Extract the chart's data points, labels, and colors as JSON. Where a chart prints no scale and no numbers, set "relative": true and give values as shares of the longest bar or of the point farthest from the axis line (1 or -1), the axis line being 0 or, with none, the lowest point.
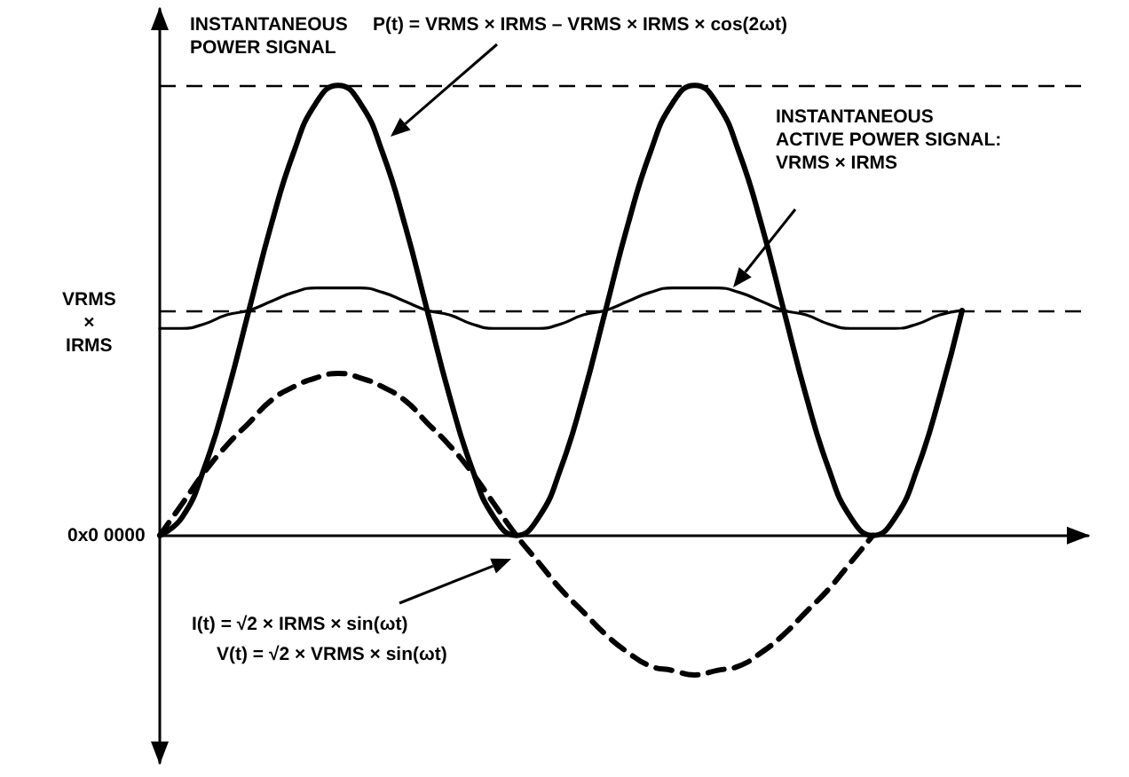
{
  "chart_data": {
    "type": "line",
    "relative": true,
    "categories": [
      null,
      null,
      null,
      null,
      null,
      null,
      null,
      null,
      null,
      null,
      null,
      null,
      null,
      null,
      null,
      null,
      null,
      null,
      null,
      null,
      null,
      null,
      null,
      null,
      null,
      null,
      null,
      null,
      null,
      null,
      null,
      null,
      null,
      null,
      null,
      null,
      null
    ],
    "series": [
      {
        "color": "#000000",
        "values": [
          0,
          0.04,
          0.15,
          0.31,
          0.5,
          0.69,
          0.85,
          0.96,
          1,
          0.96,
          0.85,
          0.69,
          0.5,
          0.31,
          0.15,
          0.04,
          0,
          0.04,
          0.15,
          0.31,
          0.5,
          0.69,
          0.85,
          0.96,
          1,
          0.96,
          0.85,
          0.69,
          0.5,
          0.31,
          0.15,
          0.04,
          0,
          0.04,
          0.15,
          0.31,
          0.5
        ]
      },
      {
        "color": "#000000",
        "values": [
          0.46,
          0.46,
          0.47,
          0.49,
          0.5,
          0.52,
          0.54,
          0.55,
          0.55,
          0.55,
          0.54,
          0.52,
          0.5,
          0.49,
          0.47,
          0.46,
          0.46,
          0.46,
          0.47,
          0.49,
          0.5,
          0.52,
          0.54,
          0.55,
          0.55,
          0.55,
          0.54,
          0.52,
          0.5,
          0.49,
          0.47,
          0.46,
          0.46,
          0.46,
          0.47,
          0.49,
          0.5
        ]
      },
      {
        "color": "#000000",
        "line_style": "dashed",
        "values": [
          0,
          0.07,
          0.14,
          0.2,
          0.25,
          0.3,
          0.33,
          0.35,
          0.36,
          0.35,
          0.33,
          0.3,
          0.25,
          0.2,
          0.14,
          0.07,
          0,
          -0.06,
          -0.12,
          -0.17,
          -0.22,
          -0.26,
          -0.29,
          -0.3,
          -0.31,
          -0.3,
          -0.29,
          -0.26,
          -0.22,
          -0.17,
          -0.12,
          -0.06,
          0,
          null,
          null,
          null,
          null
        ]
      }
    ],
    "ref_lines": [
      {
        "axis": "y",
        "value": 1,
        "line_style": "dashed",
        "color": "#000000"
      },
      {
        "axis": "y",
        "value": 0.5,
        "label": "VRMS × IRMS",
        "line_style": "dashed",
        "color": "#000000"
      }
    ],
    "annotations": [
      "INSTANTANEOUS POWER SIGNAL",
      "P(t) = VRMS × IRMS – VRMS × IRMS × cos(2ωt)",
      "INSTANTANEOUS ACTIVE POWER SIGNAL: VRMS × IRMS",
      "I(t) = √2 × IRMS × sin(ωt)",
      "V(t) = √2 × VRMS × sin(ωt)",
      "0x0 0000"
    ],
    "marker": "none",
    "grid": false
  }
}
